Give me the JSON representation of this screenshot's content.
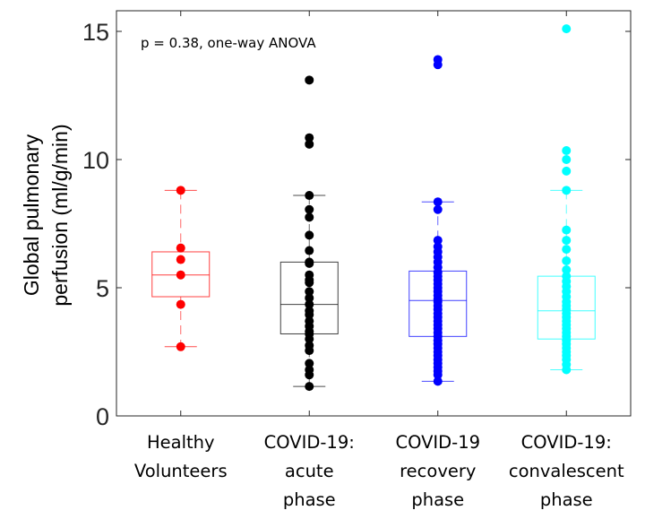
{
  "chart_data": {
    "type": "box",
    "title": "",
    "xlabel": "",
    "ylabel": [
      "Global pulmonary",
      "perfusion (ml/g/min)"
    ],
    "ylim": [
      0,
      15.8
    ],
    "yticks": [
      0,
      5,
      10,
      15
    ],
    "grid": false,
    "annotation": "p = 0.38, one-way ANOVA",
    "categories": [
      [
        "Healthy",
        "Volunteers"
      ],
      [
        "COVID-19:",
        "acute",
        "phase"
      ],
      [
        "COVID-19",
        "recovery",
        "phase"
      ],
      [
        "COVID-19:",
        "convalescent",
        "phase"
      ]
    ],
    "series": [
      {
        "name": "Healthy Volunteers",
        "color": "#ff0000",
        "box": {
          "whisker_low": 2.7,
          "q1": 4.65,
          "median": 5.5,
          "q3": 6.4,
          "whisker_high": 8.8
        },
        "points": [
          8.8,
          6.55,
          6.1,
          5.5,
          4.35,
          2.7
        ]
      },
      {
        "name": "COVID-19: acute phase",
        "color": "#000000",
        "box": {
          "whisker_low": 1.15,
          "q1": 3.2,
          "median": 4.35,
          "q3": 6.0,
          "whisker_high": 8.6
        },
        "points": [
          13.1,
          10.85,
          10.6,
          8.6,
          8.05,
          7.75,
          7.05,
          6.45,
          6.0,
          5.95,
          5.5,
          5.3,
          5.2,
          4.85,
          4.6,
          4.35,
          4.1,
          3.95,
          3.7,
          3.5,
          3.3,
          3.2,
          3.0,
          2.75,
          2.55,
          2.05,
          1.8,
          1.6,
          1.15
        ]
      },
      {
        "name": "COVID-19 recovery phase",
        "color": "#0000ff",
        "box": {
          "whisker_low": 1.35,
          "q1": 3.1,
          "median": 4.5,
          "q3": 5.65,
          "whisker_high": 8.35
        },
        "points": [
          13.9,
          13.7,
          8.35,
          8.05,
          6.85,
          6.6,
          6.4,
          6.2,
          6.0,
          5.8,
          5.6,
          5.45,
          5.3,
          5.15,
          5.0,
          4.85,
          4.7,
          4.55,
          4.45,
          4.3,
          4.15,
          4.0,
          3.85,
          3.7,
          3.55,
          3.4,
          3.25,
          3.1,
          2.95,
          2.8,
          2.65,
          2.5,
          2.35,
          2.2,
          2.05,
          1.9,
          1.75,
          1.6,
          1.35
        ]
      },
      {
        "name": "COVID-19: convalescent phase",
        "color": "#00ffff",
        "box": {
          "whisker_low": 1.8,
          "q1": 3.0,
          "median": 4.1,
          "q3": 5.45,
          "whisker_high": 8.8
        },
        "points": [
          15.1,
          10.35,
          10.0,
          9.55,
          8.8,
          7.25,
          6.85,
          6.5,
          6.05,
          5.7,
          5.45,
          5.25,
          5.05,
          4.85,
          4.65,
          4.45,
          4.3,
          4.15,
          4.0,
          3.85,
          3.7,
          3.55,
          3.4,
          3.25,
          3.1,
          2.95,
          2.8,
          2.65,
          2.5,
          2.35,
          2.2,
          2.0,
          1.8
        ]
      }
    ]
  }
}
